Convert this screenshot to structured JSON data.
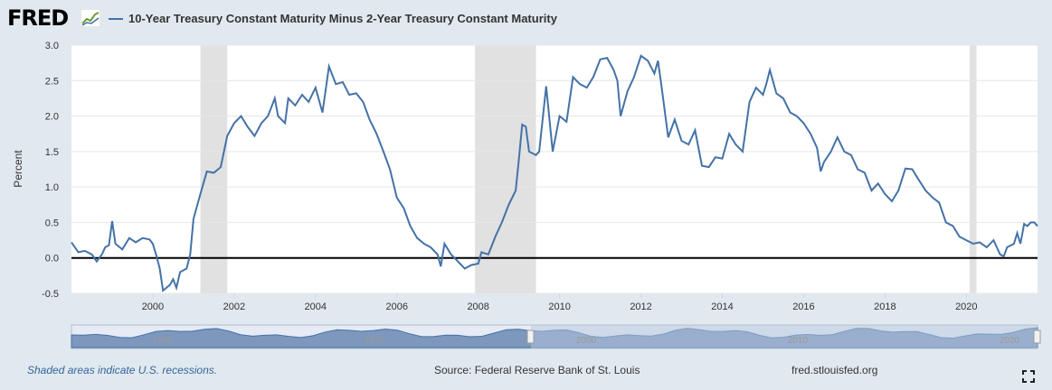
{
  "header": {
    "logo": "FRED",
    "legend_label": "10-Year Treasury Constant Maturity Minus 2-Year Treasury Constant Maturity"
  },
  "footer": {
    "recessions_note": "Shaded areas indicate U.S. recessions.",
    "source": "Source: Federal Reserve Bank of St. Louis",
    "site": "fred.stlouisfed.org"
  },
  "colors": {
    "series": "#4572a7",
    "recession": "#e1e1e1",
    "zero_line": "#000000",
    "background": "#e1e9f0",
    "plot_bg": "#ffffff"
  },
  "icons": {
    "logo_graph": "fred-graph-icon",
    "fullscreen": "fullscreen-icon"
  },
  "chart_data": {
    "type": "line",
    "ylabel": "Percent",
    "ylim": [
      -0.5,
      3.0
    ],
    "xlim": [
      1998.0,
      2021.75
    ],
    "y_ticks": [
      "3.0",
      "2.5",
      "2.0",
      "1.5",
      "1.0",
      "0.5",
      "0.0",
      "-0.5"
    ],
    "x_ticks": [
      "2000",
      "2002",
      "2004",
      "2006",
      "2008",
      "2010",
      "2012",
      "2014",
      "2016",
      "2018",
      "2020"
    ],
    "navigator_labels": [
      "1980",
      "1990",
      "2000",
      "2010",
      "2020"
    ],
    "grid": true,
    "recessions": [
      [
        2001.17,
        2001.83
      ],
      [
        2007.92,
        2009.42
      ],
      [
        2020.08,
        2020.25
      ]
    ],
    "series": [
      {
        "values": [
          [
            1998.0,
            0.22
          ],
          [
            1998.17,
            0.08
          ],
          [
            1998.33,
            0.1
          ],
          [
            1998.5,
            0.05
          ],
          [
            1998.62,
            -0.05
          ],
          [
            1998.75,
            0.05
          ],
          [
            1998.83,
            0.15
          ],
          [
            1998.92,
            0.18
          ],
          [
            1999.0,
            0.52
          ],
          [
            1999.08,
            0.2
          ],
          [
            1999.25,
            0.12
          ],
          [
            1999.42,
            0.28
          ],
          [
            1999.58,
            0.22
          ],
          [
            1999.75,
            0.28
          ],
          [
            1999.92,
            0.26
          ],
          [
            2000.0,
            0.2
          ],
          [
            2000.08,
            0.05
          ],
          [
            2000.17,
            -0.15
          ],
          [
            2000.25,
            -0.46
          ],
          [
            2000.42,
            -0.38
          ],
          [
            2000.5,
            -0.3
          ],
          [
            2000.58,
            -0.42
          ],
          [
            2000.67,
            -0.2
          ],
          [
            2000.83,
            -0.15
          ],
          [
            2000.92,
            0.05
          ],
          [
            2001.0,
            0.55
          ],
          [
            2001.17,
            0.9
          ],
          [
            2001.33,
            1.22
          ],
          [
            2001.5,
            1.2
          ],
          [
            2001.67,
            1.28
          ],
          [
            2001.83,
            1.72
          ],
          [
            2002.0,
            1.9
          ],
          [
            2002.17,
            2.0
          ],
          [
            2002.33,
            1.85
          ],
          [
            2002.5,
            1.72
          ],
          [
            2002.67,
            1.9
          ],
          [
            2002.83,
            2.0
          ],
          [
            2003.0,
            2.25
          ],
          [
            2003.08,
            2.0
          ],
          [
            2003.25,
            1.9
          ],
          [
            2003.33,
            2.25
          ],
          [
            2003.5,
            2.15
          ],
          [
            2003.67,
            2.3
          ],
          [
            2003.83,
            2.2
          ],
          [
            2004.0,
            2.4
          ],
          [
            2004.17,
            2.05
          ],
          [
            2004.33,
            2.7
          ],
          [
            2004.5,
            2.45
          ],
          [
            2004.67,
            2.48
          ],
          [
            2004.83,
            2.3
          ],
          [
            2005.0,
            2.32
          ],
          [
            2005.17,
            2.2
          ],
          [
            2005.33,
            1.95
          ],
          [
            2005.5,
            1.75
          ],
          [
            2005.67,
            1.5
          ],
          [
            2005.83,
            1.25
          ],
          [
            2006.0,
            0.85
          ],
          [
            2006.17,
            0.7
          ],
          [
            2006.33,
            0.45
          ],
          [
            2006.5,
            0.28
          ],
          [
            2006.67,
            0.2
          ],
          [
            2006.83,
            0.15
          ],
          [
            2007.0,
            0.05
          ],
          [
            2007.08,
            -0.12
          ],
          [
            2007.17,
            0.2
          ],
          [
            2007.33,
            0.05
          ],
          [
            2007.5,
            -0.05
          ],
          [
            2007.67,
            -0.15
          ],
          [
            2007.83,
            -0.1
          ],
          [
            2008.0,
            -0.08
          ],
          [
            2008.08,
            0.08
          ],
          [
            2008.25,
            0.05
          ],
          [
            2008.42,
            0.3
          ],
          [
            2008.58,
            0.5
          ],
          [
            2008.75,
            0.75
          ],
          [
            2008.92,
            0.95
          ],
          [
            2009.0,
            1.4
          ],
          [
            2009.08,
            1.88
          ],
          [
            2009.17,
            1.85
          ],
          [
            2009.25,
            1.5
          ],
          [
            2009.42,
            1.45
          ],
          [
            2009.5,
            1.5
          ],
          [
            2009.67,
            2.42
          ],
          [
            2009.83,
            1.5
          ],
          [
            2010.0,
            2.0
          ],
          [
            2010.17,
            1.92
          ],
          [
            2010.33,
            2.55
          ],
          [
            2010.5,
            2.45
          ],
          [
            2010.67,
            2.4
          ],
          [
            2010.83,
            2.55
          ],
          [
            2011.0,
            2.8
          ],
          [
            2011.17,
            2.82
          ],
          [
            2011.33,
            2.65
          ],
          [
            2011.42,
            2.5
          ],
          [
            2011.5,
            2.0
          ],
          [
            2011.67,
            2.35
          ],
          [
            2011.83,
            2.55
          ],
          [
            2012.0,
            2.85
          ],
          [
            2012.17,
            2.78
          ],
          [
            2012.33,
            2.6
          ],
          [
            2012.42,
            2.78
          ],
          [
            2012.5,
            2.45
          ],
          [
            2012.67,
            1.7
          ],
          [
            2012.83,
            1.95
          ],
          [
            2013.0,
            1.65
          ],
          [
            2013.17,
            1.6
          ],
          [
            2013.33,
            1.8
          ],
          [
            2013.5,
            1.3
          ],
          [
            2013.67,
            1.28
          ],
          [
            2013.83,
            1.42
          ],
          [
            2014.0,
            1.4
          ],
          [
            2014.17,
            1.75
          ],
          [
            2014.33,
            1.6
          ],
          [
            2014.5,
            1.5
          ],
          [
            2014.67,
            2.2
          ],
          [
            2014.83,
            2.4
          ],
          [
            2015.0,
            2.3
          ],
          [
            2015.08,
            2.45
          ],
          [
            2015.17,
            2.65
          ],
          [
            2015.33,
            2.32
          ],
          [
            2015.5,
            2.25
          ],
          [
            2015.67,
            2.05
          ],
          [
            2015.83,
            2.0
          ],
          [
            2016.0,
            1.9
          ],
          [
            2016.17,
            1.75
          ],
          [
            2016.33,
            1.55
          ],
          [
            2016.42,
            1.22
          ],
          [
            2016.5,
            1.35
          ],
          [
            2016.67,
            1.5
          ],
          [
            2016.83,
            1.7
          ],
          [
            2017.0,
            1.5
          ],
          [
            2017.17,
            1.45
          ],
          [
            2017.33,
            1.25
          ],
          [
            2017.5,
            1.2
          ],
          [
            2017.67,
            0.95
          ],
          [
            2017.83,
            1.05
          ],
          [
            2018.0,
            0.9
          ],
          [
            2018.17,
            0.8
          ],
          [
            2018.33,
            0.95
          ],
          [
            2018.5,
            1.26
          ],
          [
            2018.67,
            1.25
          ],
          [
            2018.83,
            1.1
          ],
          [
            2019.0,
            0.95
          ],
          [
            2019.17,
            0.85
          ],
          [
            2019.33,
            0.78
          ],
          [
            2019.5,
            0.5
          ],
          [
            2019.67,
            0.45
          ],
          [
            2019.83,
            0.3
          ],
          [
            2020.0,
            0.25
          ],
          [
            2020.17,
            0.2
          ],
          [
            2020.33,
            0.22
          ],
          [
            2020.5,
            0.15
          ],
          [
            2020.67,
            0.25
          ],
          [
            2020.83,
            0.05
          ],
          [
            2020.92,
            0.02
          ],
          [
            2021.0,
            0.15
          ],
          [
            2021.17,
            0.2
          ],
          [
            2021.25,
            0.35
          ],
          [
            2021.33,
            0.2
          ],
          [
            2021.42,
            0.48
          ],
          [
            2021.5,
            0.45
          ],
          [
            2021.58,
            0.5
          ],
          [
            2021.67,
            0.5
          ],
          [
            2021.75,
            0.45
          ]
        ]
      }
    ]
  }
}
